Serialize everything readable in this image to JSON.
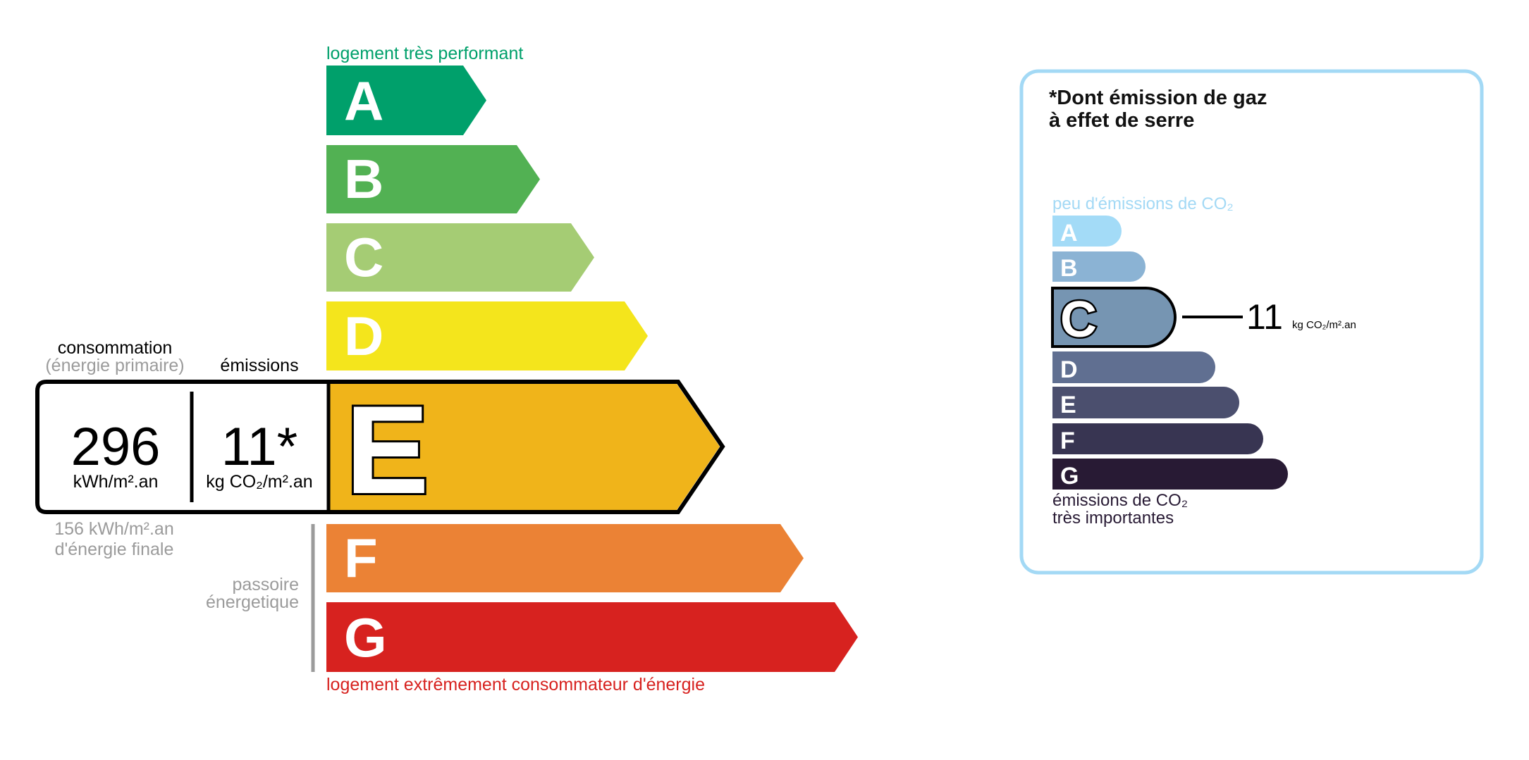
{
  "energy": {
    "top_label": "logement très performant",
    "bottom_label": "logement extrêmement consommateur d'énergie",
    "top_color": "#00a06b",
    "bottom_color": "#d7221f",
    "selected": "E",
    "classes": [
      {
        "letter": "A",
        "color": "#00a06b"
      },
      {
        "letter": "B",
        "color": "#52b153"
      },
      {
        "letter": "C",
        "color": "#a5cc74"
      },
      {
        "letter": "D",
        "color": "#f4e51c"
      },
      {
        "letter": "E",
        "color": "#f0b41a"
      },
      {
        "letter": "F",
        "color": "#eb8235"
      },
      {
        "letter": "G",
        "color": "#d7221f"
      }
    ],
    "consumption_title": "consommation",
    "consumption_subtitle": "(énergie primaire)",
    "emissions_title": "émissions",
    "consumption_value": "296",
    "consumption_unit": "kWh/m².an",
    "emissions_value": "11*",
    "emissions_unit": "kg CO₂/m².an",
    "final_energy_line1": "156 kWh/m².an",
    "final_energy_line2": "d'énergie finale",
    "passoire_line1": "passoire",
    "passoire_line2": "énergetique"
  },
  "ghg": {
    "title_line1": "*Dont émission de gaz",
    "title_line2": "à effet de serre",
    "top_label": "peu d'émissions de CO₂",
    "bottom_label_line1": "émissions de CO₂",
    "bottom_label_line2": "très importantes",
    "border_color": "#a3d9f5",
    "selected": "C",
    "value": "11",
    "unit": "kg CO₂/m².an",
    "classes": [
      {
        "letter": "A",
        "color": "#a3dbf7"
      },
      {
        "letter": "B",
        "color": "#8bb3d4"
      },
      {
        "letter": "C",
        "color": "#7695b2"
      },
      {
        "letter": "D",
        "color": "#606f91"
      },
      {
        "letter": "E",
        "color": "#4b4f6e"
      },
      {
        "letter": "F",
        "color": "#383552"
      },
      {
        "letter": "G",
        "color": "#281a34"
      }
    ]
  }
}
